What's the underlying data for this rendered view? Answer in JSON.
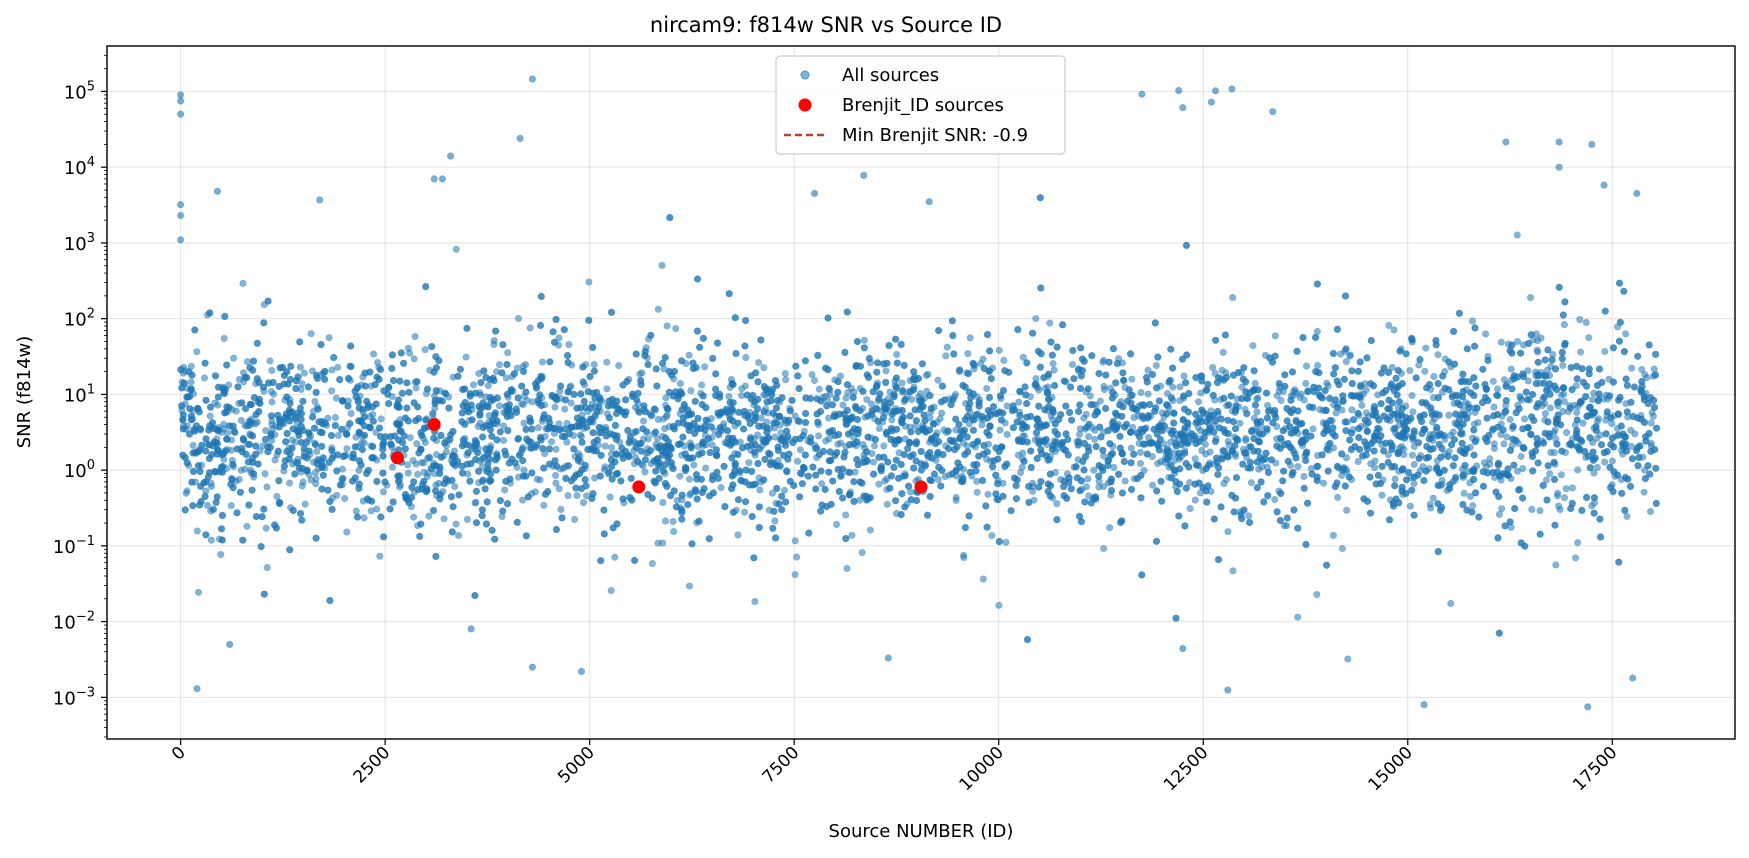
{
  "chart_data": {
    "type": "scatter",
    "title": "nircam9: f814w SNR vs Source ID",
    "xlabel": "Source NUMBER (ID)",
    "ylabel": "SNR (f814w)",
    "xlim": [
      -900,
      19000
    ],
    "ylim_log10": [
      -3.55,
      5.6
    ],
    "yscale": "log",
    "grid": true,
    "legend_position": "top-center",
    "x_ticks": [
      0,
      2500,
      5000,
      7500,
      10000,
      12500,
      15000,
      17500
    ],
    "x_tick_labels": [
      "0",
      "2500",
      "5000",
      "7500",
      "10000",
      "12500",
      "15000",
      "17500"
    ],
    "y_tick_exponents": [
      -3,
      -2,
      -1,
      0,
      1,
      2,
      3,
      4,
      5
    ],
    "y_tick_labels": [
      "-3",
      "-2",
      "-1",
      "0",
      "1",
      "2",
      "3",
      "4",
      "5"
    ],
    "y_tick_base": "10",
    "series": [
      {
        "name": "All sources",
        "color": "#1f77b4",
        "n_points_approx": 18000,
        "x_range": [
          0,
          18050
        ],
        "y_median": 3.0,
        "y_range": [
          0.00075,
          146000
        ],
        "note_points": [
          [
            0,
            90000
          ],
          [
            0,
            75000
          ],
          [
            0,
            50000
          ],
          [
            0,
            3200
          ],
          [
            0,
            2300
          ],
          [
            0,
            1100
          ],
          [
            4300,
            146000
          ],
          [
            4150,
            24000
          ],
          [
            3300,
            14000
          ],
          [
            3100,
            7000
          ],
          [
            3200,
            7000
          ],
          [
            450,
            4800
          ],
          [
            1700,
            3700
          ],
          [
            12200,
            103000
          ],
          [
            12650,
            102000
          ],
          [
            12850,
            108000
          ],
          [
            11750,
            92000
          ],
          [
            12600,
            72000
          ],
          [
            12250,
            61000
          ],
          [
            13350,
            54000
          ],
          [
            16200,
            21500
          ],
          [
            16850,
            21500
          ],
          [
            17250,
            20000
          ],
          [
            16850,
            10000
          ],
          [
            17400,
            5800
          ],
          [
            17800,
            4500
          ],
          [
            9150,
            3500
          ],
          [
            8350,
            7800
          ],
          [
            7750,
            4500
          ],
          [
            200,
            0.0013
          ],
          [
            4900,
            0.0022
          ],
          [
            4300,
            0.0025
          ],
          [
            12800,
            0.00125
          ],
          [
            15200,
            0.0008
          ],
          [
            17200,
            0.00075
          ],
          [
            17750,
            0.0018
          ],
          [
            8650,
            0.0033
          ],
          [
            12250,
            0.0044
          ],
          [
            600,
            0.005
          ],
          [
            3550,
            0.008
          ]
        ]
      },
      {
        "name": "Brenjit_ID sources",
        "color": "#ff0000",
        "x": [
          2650,
          3100,
          5600,
          9050
        ],
        "y": [
          1.45,
          4.0,
          0.6,
          0.6
        ]
      }
    ],
    "reference_line": {
      "label": "Min Brenjit SNR: -0.9",
      "color": "#b5403a",
      "style": "dashed",
      "value": -0.9
    }
  }
}
